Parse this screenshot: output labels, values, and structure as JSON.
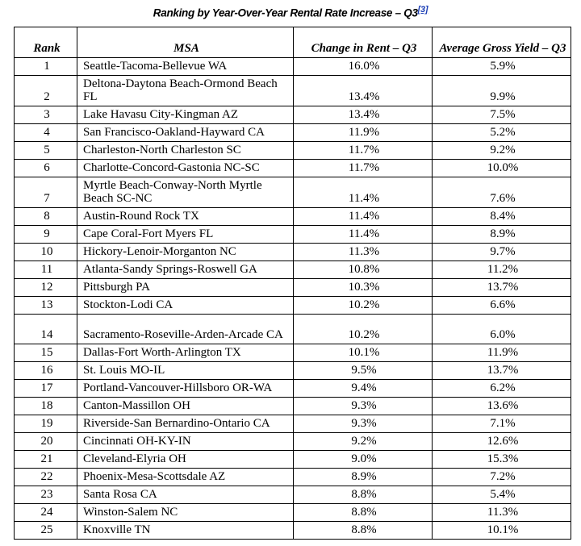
{
  "title": "Ranking by Year-Over-Year Rental Rate Increase – Q3",
  "footnote_ref": "[3]",
  "columns": {
    "rank": "Rank",
    "msa": "MSA",
    "change": "Change in Rent – Q3",
    "yield": "Average Gross Yield – Q3"
  },
  "rows": [
    {
      "rank": "1",
      "msa": "Seattle-Tacoma-Bellevue WA",
      "change": "16.0%",
      "yield": "5.9%"
    },
    {
      "rank": "2",
      "msa": "Deltona-Daytona Beach-Ormond Beach FL",
      "change": "13.4%",
      "yield": "9.9%"
    },
    {
      "rank": "3",
      "msa": "Lake Havasu City-Kingman AZ",
      "change": "13.4%",
      "yield": "7.5%"
    },
    {
      "rank": "4",
      "msa": "San Francisco-Oakland-Hayward CA",
      "change": "11.9%",
      "yield": "5.2%"
    },
    {
      "rank": "5",
      "msa": "Charleston-North Charleston SC",
      "change": "11.7%",
      "yield": "9.2%"
    },
    {
      "rank": "6",
      "msa": "Charlotte-Concord-Gastonia NC-SC",
      "change": "11.7%",
      "yield": "10.0%"
    },
    {
      "rank": "7",
      "msa": "Myrtle Beach-Conway-North Myrtle Beach SC-NC",
      "change": "11.4%",
      "yield": "7.6%"
    },
    {
      "rank": "8",
      "msa": "Austin-Round Rock TX",
      "change": "11.4%",
      "yield": "8.4%"
    },
    {
      "rank": "9",
      "msa": "Cape Coral-Fort Myers FL",
      "change": "11.4%",
      "yield": "8.9%"
    },
    {
      "rank": "10",
      "msa": "Hickory-Lenoir-Morganton NC",
      "change": "11.3%",
      "yield": "9.7%"
    },
    {
      "rank": "11",
      "msa": "Atlanta-Sandy Springs-Roswell GA",
      "change": "10.8%",
      "yield": "11.2%"
    },
    {
      "rank": "12",
      "msa": "Pittsburgh PA",
      "change": "10.3%",
      "yield": "13.7%"
    },
    {
      "rank": "13",
      "msa": "Stockton-Lodi CA",
      "change": "10.2%",
      "yield": "6.6%"
    },
    {
      "rank": "14",
      "msa": "Sacramento-Roseville-Arden-Arcade CA",
      "change": "10.2%",
      "yield": "6.0%"
    },
    {
      "rank": "15",
      "msa": "Dallas-Fort Worth-Arlington TX",
      "change": "10.1%",
      "yield": "11.9%"
    },
    {
      "rank": "16",
      "msa": "St. Louis MO-IL",
      "change": "9.5%",
      "yield": "13.7%"
    },
    {
      "rank": "17",
      "msa": "Portland-Vancouver-Hillsboro OR-WA",
      "change": "9.4%",
      "yield": "6.2%"
    },
    {
      "rank": "18",
      "msa": "Canton-Massillon OH",
      "change": "9.3%",
      "yield": "13.6%"
    },
    {
      "rank": "19",
      "msa": "Riverside-San Bernardino-Ontario CA",
      "change": "9.3%",
      "yield": "7.1%"
    },
    {
      "rank": "20",
      "msa": "Cincinnati OH-KY-IN",
      "change": "9.2%",
      "yield": "12.6%"
    },
    {
      "rank": "21",
      "msa": "Cleveland-Elyria OH",
      "change": "9.0%",
      "yield": "15.3%"
    },
    {
      "rank": "22",
      "msa": "Phoenix-Mesa-Scottsdale AZ",
      "change": "8.9%",
      "yield": "7.2%"
    },
    {
      "rank": "23",
      "msa": "Santa Rosa CA",
      "change": "8.8%",
      "yield": "5.4%"
    },
    {
      "rank": "24",
      "msa": "Winston-Salem NC",
      "change": "8.8%",
      "yield": "11.3%"
    },
    {
      "rank": "25",
      "msa": "Knoxville TN",
      "change": "8.8%",
      "yield": "10.1%"
    }
  ]
}
